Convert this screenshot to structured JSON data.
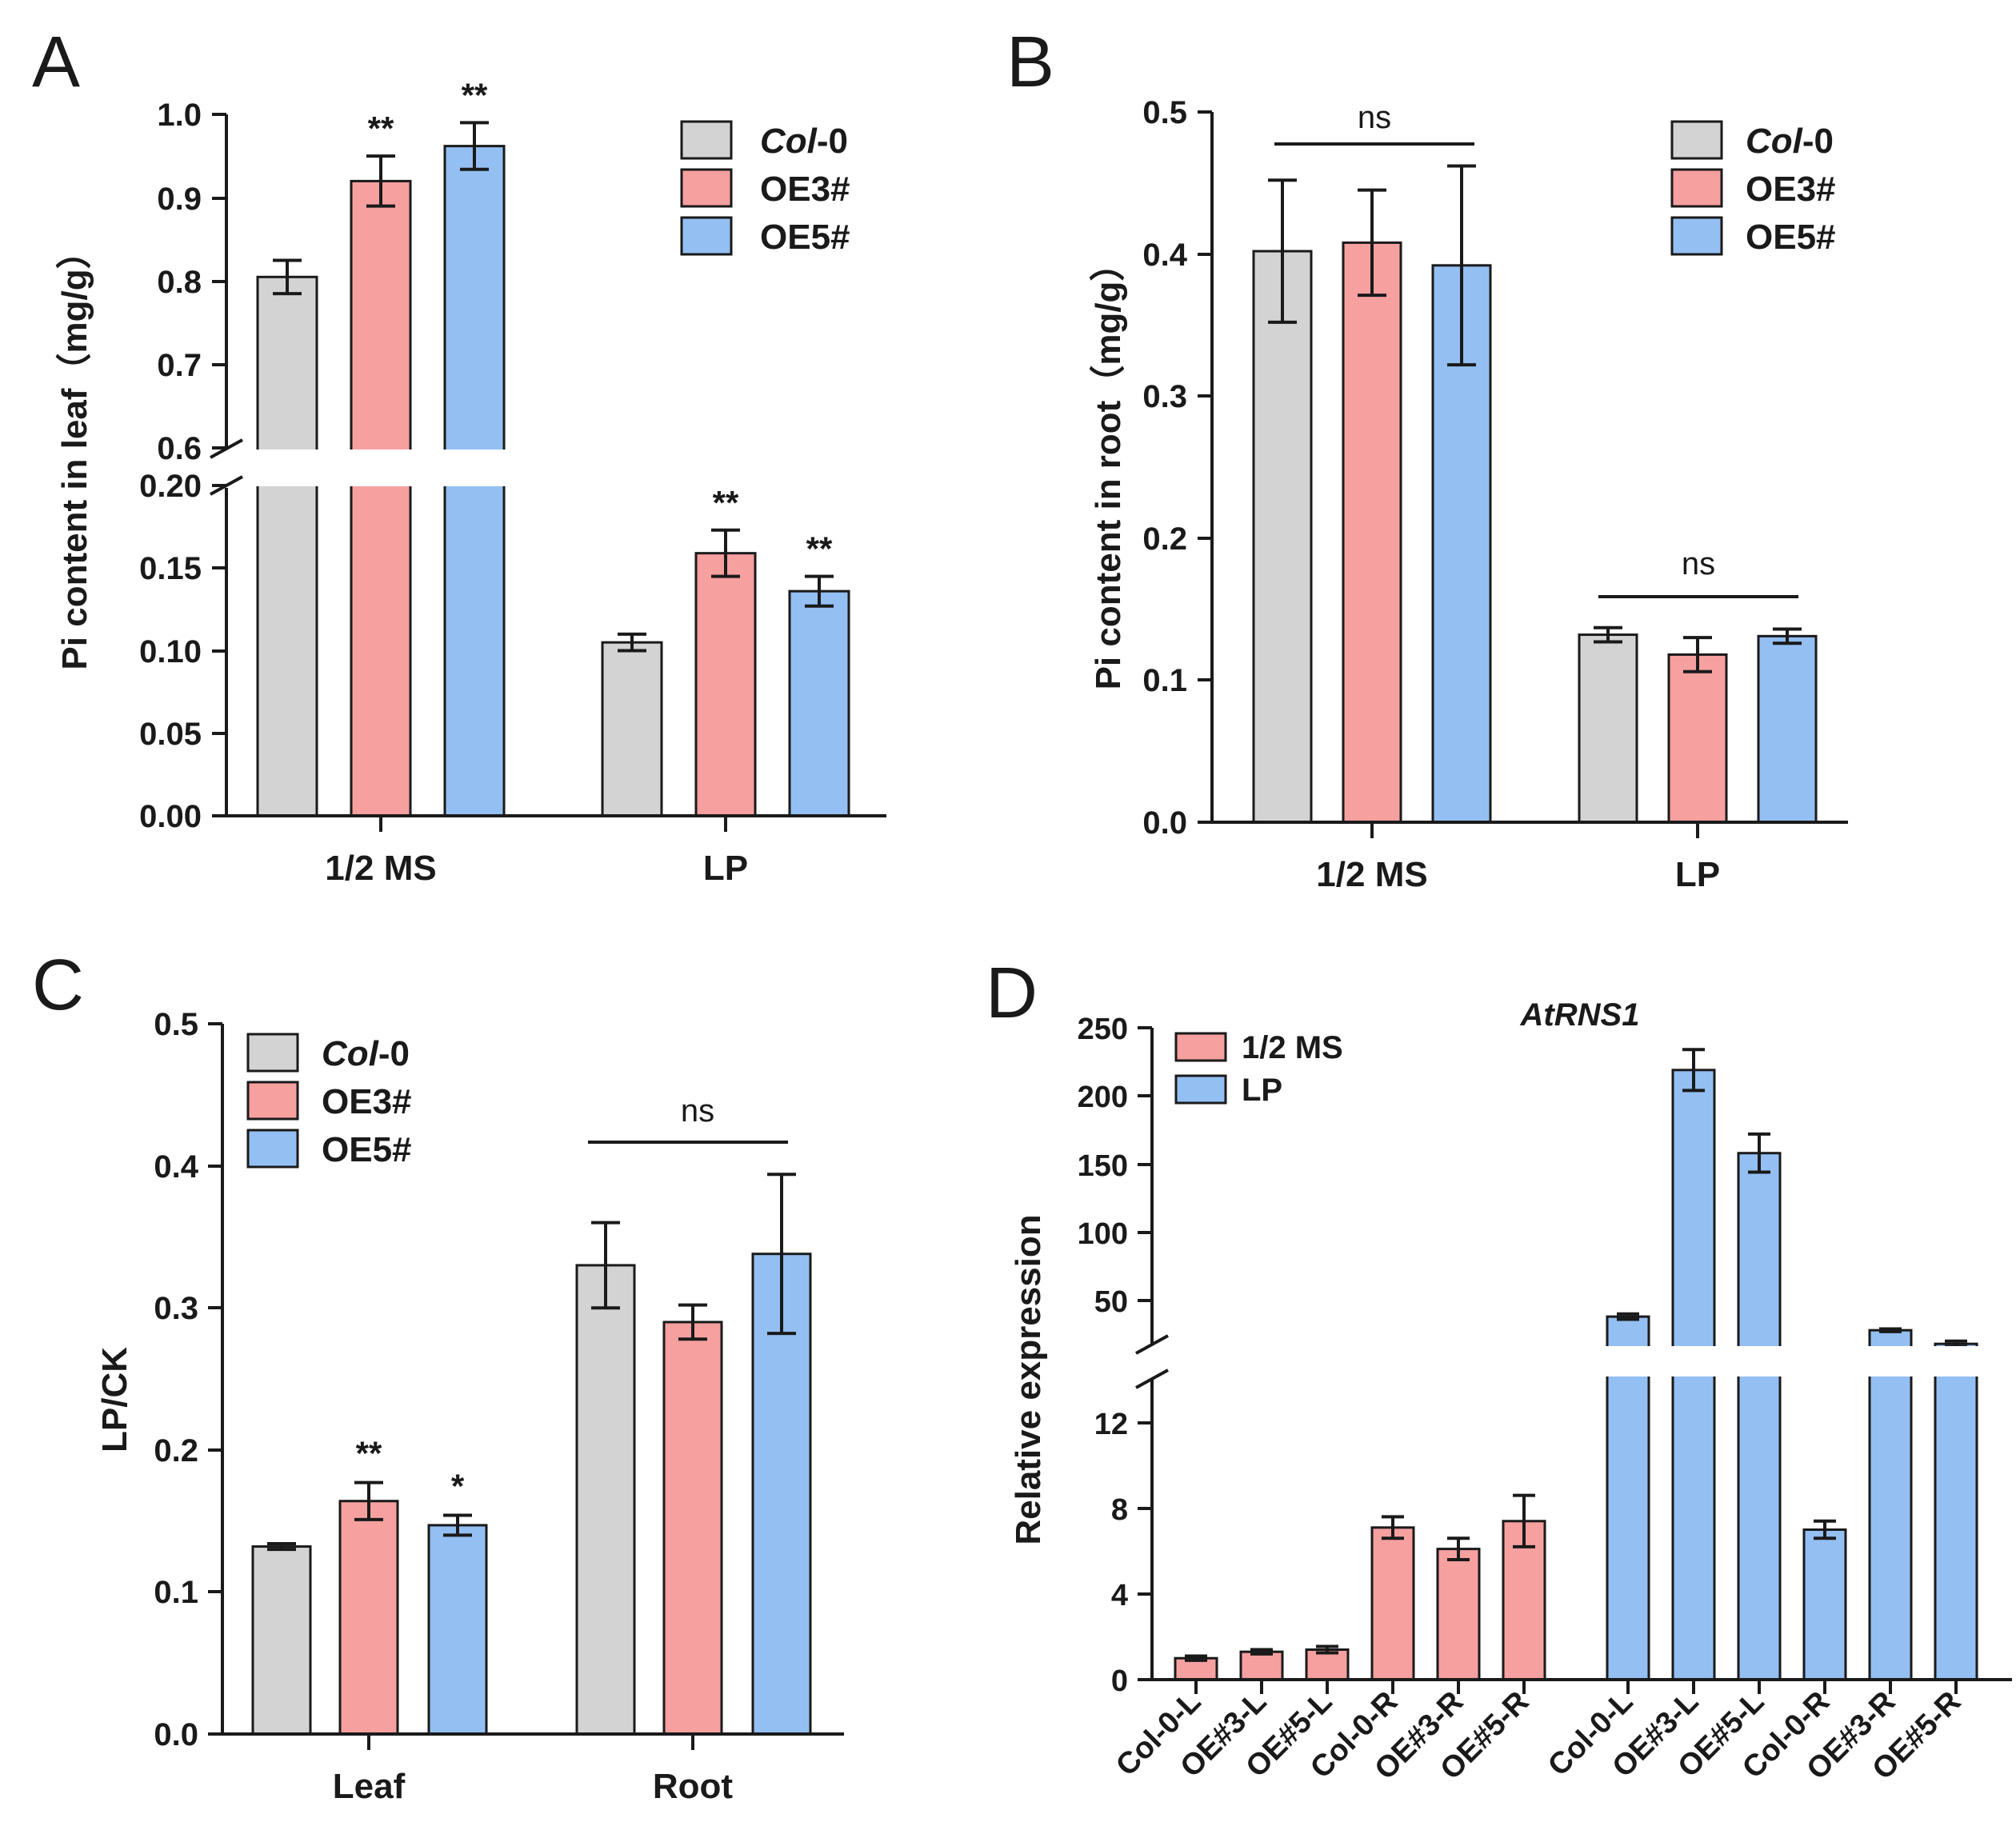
{
  "colors": {
    "col0": "#d3d3d3",
    "oe3": "#f6a0a0",
    "oe5": "#94bff2",
    "ms": "#f6a0a0",
    "lp": "#94bff2",
    "ink": "#1a1a1a"
  },
  "panel_a": {
    "letter": "A",
    "ylabel": "Pi content in leaf（mg/g）",
    "legend": [
      {
        "italic": "Col",
        "rest": "-0"
      },
      {
        "italic": "",
        "rest": "OE3#"
      },
      {
        "italic": "",
        "rest": "OE5#"
      }
    ],
    "upper_ticks": [
      "0.6",
      "0.7",
      "0.8",
      "0.9",
      "1.0"
    ],
    "lower_ticks": [
      "0.00",
      "0.05",
      "0.10",
      "0.15",
      "0.20"
    ]
  },
  "panel_b": {
    "letter": "B",
    "ylabel": "Pi content in root（mg/g）",
    "legend": [
      {
        "italic": "Col",
        "rest": "-0"
      },
      {
        "italic": "",
        "rest": "OE3#"
      },
      {
        "italic": "",
        "rest": "OE5#"
      }
    ],
    "ticks": [
      "0.0",
      "0.1",
      "0.2",
      "0.3",
      "0.4",
      "0.5"
    ]
  },
  "panel_c": {
    "letter": "C",
    "ylabel": "LP/CK",
    "legend": [
      {
        "italic": "Col",
        "rest": "-0"
      },
      {
        "italic": "",
        "rest": "OE3#"
      },
      {
        "italic": "",
        "rest": "OE5#"
      }
    ],
    "ticks": [
      "0.0",
      "0.1",
      "0.2",
      "0.3",
      "0.4",
      "0.5"
    ]
  },
  "panel_d": {
    "letter": "D",
    "ylabel": "Relative expression",
    "legend": [
      "1/2 MS",
      "LP"
    ],
    "upper_ticks": [
      "50",
      "100",
      "150",
      "200",
      "250"
    ],
    "lower_ticks": [
      "0",
      "4",
      "8",
      "12"
    ]
  },
  "chart_data": [
    {
      "type": "bar",
      "panel": "A",
      "title": "",
      "xlabel": "",
      "ylabel": "Pi content in leaf（mg/g）",
      "categories": [
        "1/2 MS",
        "LP"
      ],
      "series": [
        {
          "name": "Col-0",
          "values": [
            0.805,
            0.105
          ],
          "errors": [
            0.02,
            0.005
          ],
          "annotations": [
            "",
            ""
          ]
        },
        {
          "name": "OE3#",
          "values": [
            0.92,
            0.159
          ],
          "errors": [
            0.03,
            0.014
          ],
          "annotations": [
            "**",
            "**"
          ]
        },
        {
          "name": "OE5#",
          "values": [
            0.962,
            0.136
          ],
          "errors": [
            0.028,
            0.009
          ],
          "annotations": [
            "**",
            "**"
          ]
        }
      ],
      "axis_break": {
        "lower": [
          0,
          0.2
        ],
        "upper": [
          0.6,
          1.0
        ]
      }
    },
    {
      "type": "bar",
      "panel": "B",
      "title": "",
      "xlabel": "",
      "ylabel": "Pi content in root（mg/g）",
      "categories": [
        "1/2 MS",
        "LP"
      ],
      "series": [
        {
          "name": "Col-0",
          "values": [
            0.402,
            0.132
          ],
          "errors": [
            0.05,
            0.005
          ]
        },
        {
          "name": "OE3#",
          "values": [
            0.408,
            0.118
          ],
          "errors": [
            0.037,
            0.012
          ]
        },
        {
          "name": "OE5#",
          "values": [
            0.392,
            0.131
          ],
          "errors": [
            0.07,
            0.005
          ]
        }
      ],
      "group_annotations": [
        "ns",
        "ns"
      ],
      "ylim": [
        0,
        0.5
      ]
    },
    {
      "type": "bar",
      "panel": "C",
      "title": "",
      "xlabel": "",
      "ylabel": "LP/CK",
      "categories": [
        "Leaf",
        "Root"
      ],
      "series": [
        {
          "name": "Col-0",
          "values": [
            0.132,
            0.33
          ],
          "errors": [
            0.002,
            0.03
          ],
          "annotations": [
            "",
            ""
          ]
        },
        {
          "name": "OE3#",
          "values": [
            0.164,
            0.29
          ],
          "errors": [
            0.013,
            0.012
          ],
          "annotations": [
            "**",
            ""
          ]
        },
        {
          "name": "OE5#",
          "values": [
            0.147,
            0.338
          ],
          "errors": [
            0.007,
            0.056
          ],
          "annotations": [
            "*",
            ""
          ]
        }
      ],
      "group_annotations": [
        "",
        "ns"
      ],
      "ylim": [
        0,
        0.5
      ]
    },
    {
      "type": "bar",
      "panel": "D",
      "title": "AtRNS1",
      "xlabel": "",
      "ylabel": "Relative expression",
      "categories": [
        "Col-0-L",
        "OE#3-L",
        "OE#5-L",
        "Col-0-R",
        "OE#3-R",
        "OE#5-R"
      ],
      "series": [
        {
          "name": "1/2 MS",
          "values": [
            1.0,
            1.3,
            1.4,
            7.1,
            6.1,
            7.4
          ],
          "errors": [
            0.1,
            0.1,
            0.15,
            0.5,
            0.5,
            1.2
          ]
        },
        {
          "name": "LP",
          "values": [
            38,
            219,
            158,
            7.0,
            28,
            18
          ],
          "errors": [
            2,
            15,
            14,
            0.4,
            1,
            2
          ]
        }
      ],
      "axis_break": {
        "lower": [
          0,
          14
        ],
        "upper": [
          14,
          250
        ]
      }
    }
  ]
}
